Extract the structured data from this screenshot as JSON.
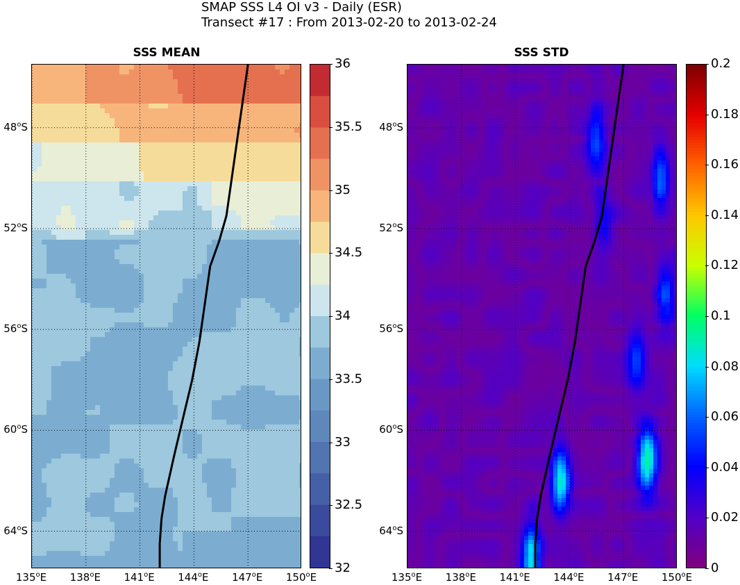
{
  "title": {
    "line1": "SMAP SSS L4 OI v3 - Daily (ESR)",
    "line2": "Transect #17 : From 2013-02-20 to 2013-02-24"
  },
  "panels": [
    {
      "title": "SSS MEAN",
      "colorbar_ticks": [
        "36",
        "35.5",
        "35",
        "34.5",
        "34",
        "33.5",
        "33",
        "32.5",
        "32"
      ],
      "colorbar_range": [
        32,
        36
      ],
      "colormap": "RdYlBu_r discrete"
    },
    {
      "title": "SSS STD",
      "colorbar_ticks": [
        "0.2",
        "0.18",
        "0.16",
        "0.14",
        "0.12",
        "0.1",
        "0.08",
        "0.06",
        "0.04",
        "0.02",
        "0"
      ],
      "colorbar_range": [
        0,
        0.2
      ],
      "colormap": "jet-like (purple to dark red)"
    }
  ],
  "axes": {
    "lon_ticks": [
      "135",
      "138",
      "141",
      "144",
      "147",
      "150"
    ],
    "lat_ticks": [
      "48",
      "52",
      "56",
      "60",
      "64"
    ],
    "lon_unit": "E",
    "lat_unit": "S",
    "degree_symbol": "o",
    "lon_range": [
      135,
      150
    ],
    "lat_range": [
      -65.5,
      -45.5
    ],
    "grid": "dotted"
  },
  "transect": {
    "color": "#000000",
    "lon": [
      147.0,
      146.7,
      146.4,
      146.1,
      145.8,
      145.4,
      145.0,
      144.9,
      144.6,
      144.3,
      143.9,
      143.4,
      142.9,
      142.4,
      142.2,
      142.1,
      142.1
    ],
    "lat": [
      -45.5,
      -47.0,
      -48.5,
      -50.0,
      -51.5,
      -52.5,
      -53.3,
      -53.5,
      -55.0,
      -56.5,
      -58.0,
      -59.5,
      -61.0,
      -62.6,
      -63.5,
      -64.5,
      -65.5
    ]
  },
  "mean_field": {
    "description_levels": [
      34.8,
      34.6,
      34.4,
      34.2,
      34.0,
      33.9,
      33.8,
      33.7,
      33.6
    ]
  }
}
